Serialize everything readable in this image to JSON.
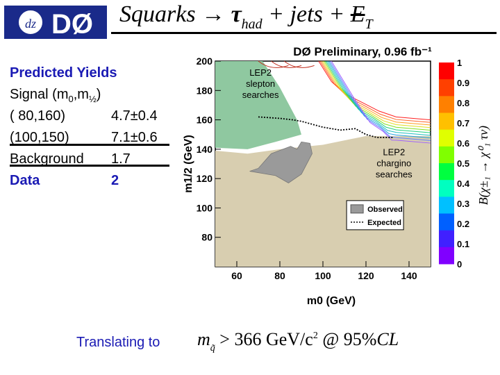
{
  "header": {
    "logo_text": "DØ",
    "title_main": "Squarks ",
    "title_arrow": "→",
    "title_tau": "τ",
    "title_tau_sub": "had",
    "title_rest": " + jets + ",
    "title_et": "E",
    "title_et_sub": "T"
  },
  "yields": {
    "heading": "Predicted Yields",
    "signal_label": "Signal (m0,m½)",
    "rows": [
      {
        "label": "( 80,160)",
        "value": "4.7±0.4"
      },
      {
        "label": "(100,150)",
        "value": "7.1±0.6"
      }
    ],
    "background_label": "Background",
    "background_value": "1.7",
    "data_label": "Data",
    "data_value": "2"
  },
  "chart_data": {
    "type": "heatmap",
    "title": "DØ Preliminary, 0.96 fb⁻¹",
    "xlabel": "m0 (GeV)",
    "ylabel": "m1/2 (GeV)",
    "xlim": [
      50,
      150
    ],
    "ylim": [
      60,
      200
    ],
    "x_ticks": [
      "60",
      "80",
      "100",
      "120",
      "140"
    ],
    "y_ticks": [
      "200",
      "180",
      "160",
      "140",
      "120",
      "100",
      "80"
    ],
    "colorbar_label": "B(χ±₁ → χ⁰₁ τν)",
    "colorbar_ticks": [
      "1",
      "0.9",
      "0.8",
      "0.7",
      "0.6",
      "0.5",
      "0.4",
      "0.3",
      "0.2",
      "0.1",
      "0"
    ],
    "regions": [
      {
        "name": "LEP2 slepton searches",
        "label": "LEP2 slepton searches",
        "color": "#8fc8a0"
      },
      {
        "name": "LEP2 chargino searches",
        "label": "LEP2 chargino searches",
        "color": "#d8ceb0"
      },
      {
        "name": "Observed",
        "color": "#9a9a9a"
      }
    ],
    "expected_curve": [
      [
        70,
        162
      ],
      [
        80,
        161
      ],
      [
        86,
        160
      ],
      [
        90,
        159
      ],
      [
        95,
        157
      ],
      [
        100,
        155
      ],
      [
        108,
        153
      ],
      [
        115,
        154
      ],
      [
        120,
        150
      ],
      [
        125,
        148
      ],
      [
        133,
        148
      ]
    ],
    "observed_boundary": [
      [
        66,
        125
      ],
      [
        70,
        127
      ],
      [
        76,
        137
      ],
      [
        85,
        142
      ],
      [
        88,
        140
      ],
      [
        90,
        145
      ],
      [
        94,
        144
      ],
      [
        95,
        137
      ],
      [
        90,
        123
      ],
      [
        84,
        117
      ],
      [
        78,
        122
      ],
      [
        66,
        125
      ]
    ],
    "legend": [
      {
        "label": "Observed",
        "style": "box"
      },
      {
        "label": "Expected",
        "style": "dotted"
      }
    ],
    "lep2_slepton_text": [
      "LEP2",
      "slepton",
      "searches"
    ],
    "lep2_chargino_text": [
      "LEP2",
      "chargino",
      "searches"
    ]
  },
  "footer": {
    "translate_label": "Translating to",
    "formula_m": "m",
    "formula_sub": "q̃",
    "formula_main": " > 366 GeV/c",
    "formula_sup": "2",
    "formula_at": " @  95%",
    "formula_cl": "CL"
  },
  "colors": {
    "accent_blue": "#1a1ab4",
    "lep_slepton": "#8fc8a0",
    "lep_chargino": "#d8ceb0",
    "observed": "#9a9a9a"
  }
}
